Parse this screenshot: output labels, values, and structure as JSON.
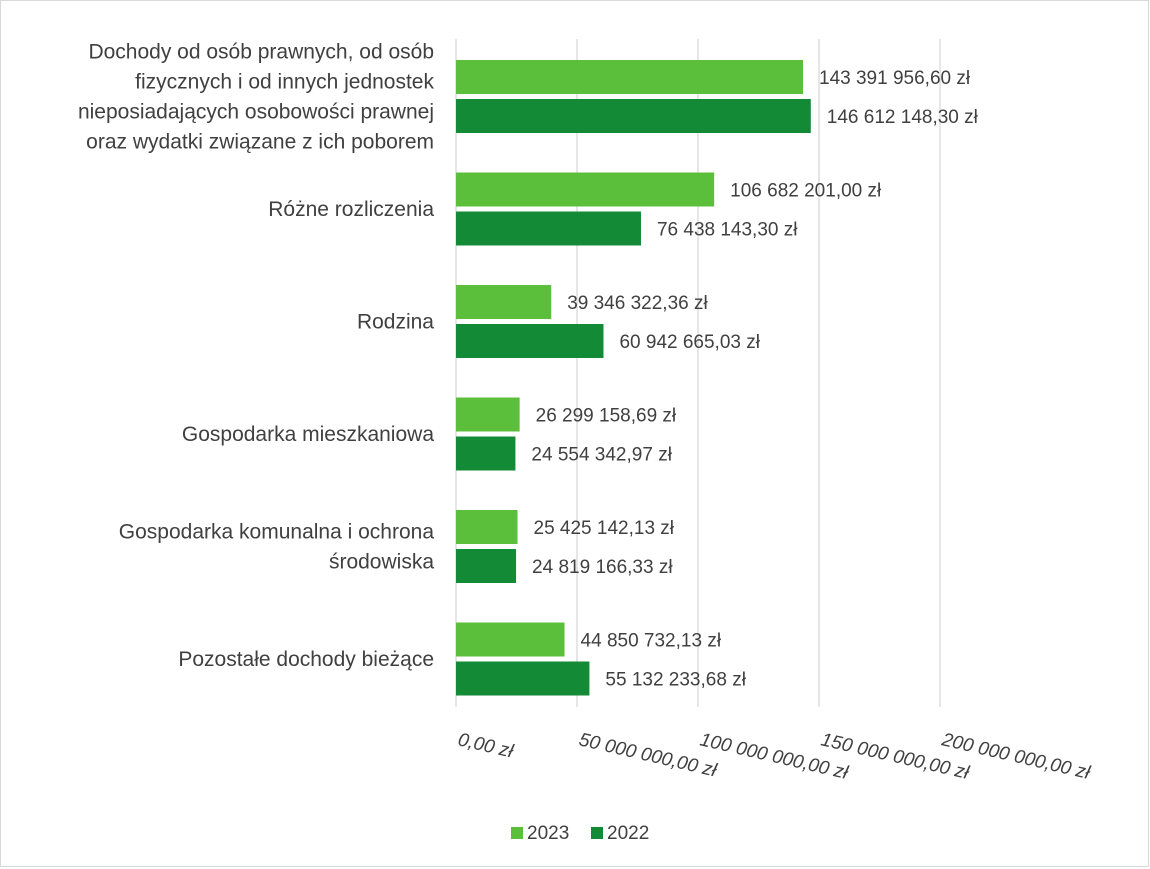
{
  "chart_data": {
    "type": "bar",
    "orientation": "horizontal",
    "categories": [
      [
        "Dochody od osób prawnych, od osób",
        "fizycznych i od innych jednostek",
        "nieposiadających osobowości prawnej",
        "oraz wydatki związane z ich poborem"
      ],
      [
        "Różne rozliczenia"
      ],
      [
        "Rodzina"
      ],
      [
        "Gospodarka mieszkaniowa"
      ],
      [
        "Gospodarka komunalna i ochrona",
        "środowiska"
      ],
      [
        "Pozostałe dochody bieżące"
      ]
    ],
    "series": [
      {
        "name": "2023",
        "color": "#5cbf3b",
        "values": [
          143391956.6,
          106682201.0,
          39346322.36,
          26299158.69,
          25425142.13,
          44850732.13
        ],
        "labels": [
          "143 391 956,60 zł",
          "106 682 201,00 zł",
          "39 346 322,36 zł",
          "26 299 158,69 zł",
          "25 425 142,13 zł",
          "44 850 732,13 zł"
        ]
      },
      {
        "name": "2022",
        "color": "#138a36",
        "values": [
          146612148.3,
          76438143.3,
          60942665.03,
          24554342.97,
          24819166.33,
          55132233.68
        ],
        "labels": [
          "146 612 148,30 zł",
          "76 438 143,30 zł",
          "60 942 665,03 zł",
          "24 554 342,97 zł",
          "24 819 166,33 zł",
          "55 132 233,68 zł"
        ]
      }
    ],
    "xlim": [
      0,
      200000000
    ],
    "xticks": [
      0,
      50000000,
      100000000,
      150000000,
      200000000
    ],
    "xtick_labels": [
      "0,00 zł",
      "50 000 000,00 zł",
      "100 000 000,00 zł",
      "150 000 000,00 zł",
      "200 000 000,00 zł"
    ],
    "grid": true,
    "legend_position": "bottom",
    "gridline_color": "#d9d9d9",
    "text_color": "#404040"
  }
}
